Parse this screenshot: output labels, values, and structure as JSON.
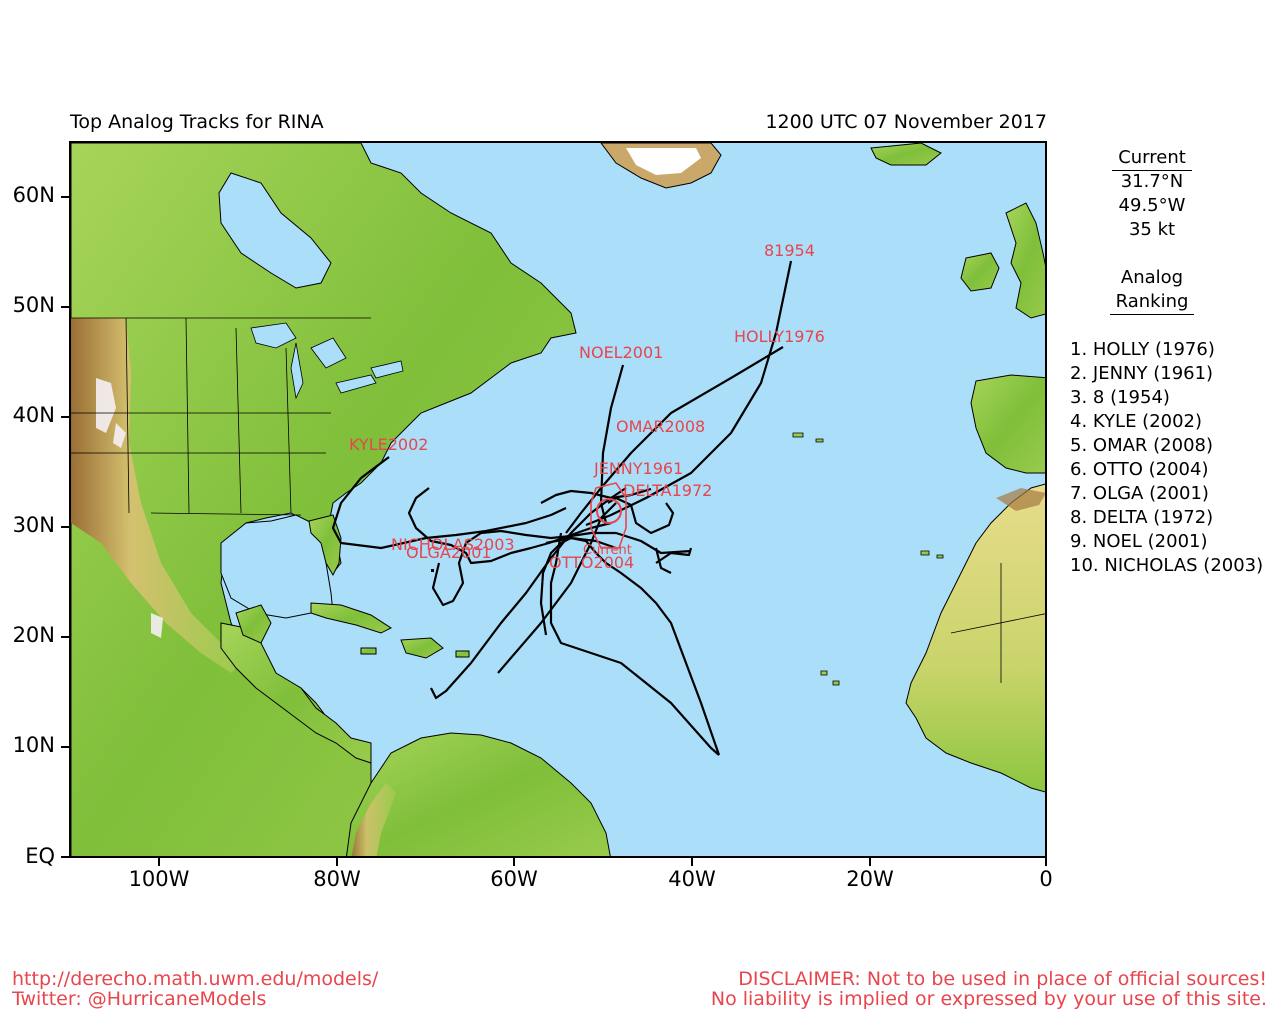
{
  "header": {
    "title": "Top Analog Tracks for RINA",
    "datetime": "1200 UTC 07 November 2017"
  },
  "axes": {
    "lat_labels": [
      "60N",
      "50N",
      "40N",
      "30N",
      "20N",
      "10N",
      "EQ"
    ],
    "lon_labels": [
      "100W",
      "80W",
      "60W",
      "40W",
      "20W",
      "0"
    ]
  },
  "current": {
    "heading": "Current",
    "lat": "31.7°N",
    "lon": "49.5°W",
    "wind": "35 kt"
  },
  "analog": {
    "heading_line1": "Analog",
    "heading_line2": "Ranking",
    "items": [
      "1.  HOLLY (1976)",
      "2.  JENNY (1961)",
      "3.  8 (1954)",
      "4.  KYLE (2002)",
      "5.  OMAR (2008)",
      "6.  OTTO (2004)",
      "7.  OLGA (2001)",
      "8.  DELTA (1972)",
      "9.  NOEL (2001)",
      "10. NICHOLAS (2003)"
    ]
  },
  "track_labels": {
    "t8_1954": "81954",
    "holly": "HOLLY1976",
    "noel": "NOEL2001",
    "omar": "OMAR2008",
    "kyle": "KYLE2002",
    "jenny": "JENNY1961",
    "delta": "DELTA1972",
    "nicholas": "NICHOLAS2003",
    "olga": "OLGA2001",
    "otto": "OTTO2004",
    "current": "Current"
  },
  "footer": {
    "url": "http://derecho.math.uwm.edu/models/",
    "twitter": "Twitter: @HurricaneModels",
    "disclaimer1": "DISCLAIMER: Not to be used in place of official sources!",
    "disclaimer2": "No liability is implied or expressed by your use of this site."
  },
  "colors": {
    "ocean": "#abdff9",
    "land_low": "#8cc63f",
    "land_mid": "#d6c66b",
    "land_high": "#8b5a2b",
    "snow": "#ffffff",
    "track": "#000000",
    "label": "#e8454d"
  }
}
